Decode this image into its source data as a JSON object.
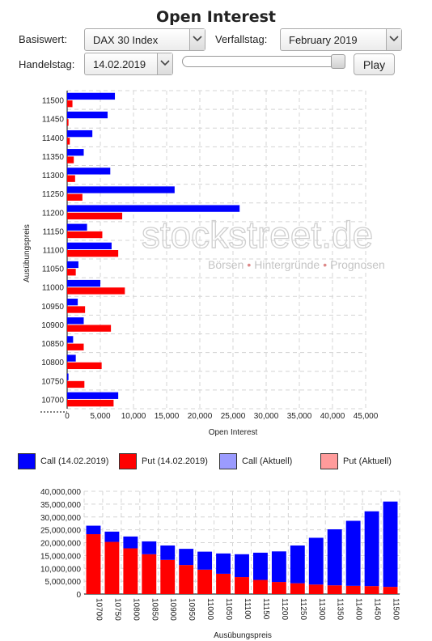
{
  "title": "Open Interest",
  "controls": {
    "basiswert_label": "Basiswert:",
    "basiswert_value": "DAX 30 Index",
    "verfallstag_label": "Verfallstag:",
    "verfallstag_value": "February 2019",
    "handelstag_label": "Handelstag:",
    "handelstag_value": "14.02.2019",
    "play_label": "Play",
    "slider_position": 1.0
  },
  "watermark": {
    "brand": "stockstreet.de",
    "tagline_parts": [
      "Börsen",
      "Hintergründe",
      "Prognosen"
    ],
    "separator": "•"
  },
  "legend": [
    {
      "label": "Call (14.02.2019)",
      "color": "#0000ff"
    },
    {
      "label": "Put (14.02.2019)",
      "color": "#ff0000"
    },
    {
      "label": "Call (Aktuell)",
      "color": "#9b9bff"
    },
    {
      "label": "Put (Aktuell)",
      "color": "#ff9b9b"
    }
  ],
  "chart_data": [
    {
      "type": "bar",
      "orientation": "horizontal",
      "xlabel": "Open Interest",
      "ylabel": "Ausübungspreis",
      "xlim": [
        0,
        45000
      ],
      "xticks": [
        0,
        5000,
        10000,
        15000,
        20000,
        25000,
        30000,
        35000,
        40000,
        45000
      ],
      "xtick_labels": [
        "0",
        "5,000",
        "10,000",
        "15,000",
        "20,000",
        "25,000",
        "30,000",
        "35,000",
        "40,000",
        "45,000"
      ],
      "grid": true,
      "categories": [
        "11500",
        "11450",
        "11400",
        "11350",
        "11300",
        "11250",
        "11200",
        "11150",
        "11100",
        "11050",
        "11000",
        "10950",
        "10900",
        "10850",
        "10800",
        "10750",
        "10700"
      ],
      "series": [
        {
          "name": "Call (14.02.2019)",
          "color": "#0000ff",
          "values": [
            7200,
            6100,
            3800,
            2500,
            6500,
            16200,
            26000,
            3000,
            6700,
            1700,
            5000,
            1600,
            2500,
            900,
            1300,
            200,
            7700
          ]
        },
        {
          "name": "Put (14.02.2019)",
          "color": "#ff0000",
          "values": [
            800,
            200,
            400,
            1000,
            1200,
            2300,
            8300,
            5300,
            7700,
            1300,
            8700,
            2700,
            6600,
            2500,
            5200,
            2600,
            7000
          ]
        }
      ]
    },
    {
      "type": "bar",
      "stacked": true,
      "xlabel": "Ausübungspreis",
      "ylabel": "",
      "ylim": [
        0,
        40000000
      ],
      "yticks": [
        0,
        5000000,
        10000000,
        15000000,
        20000000,
        25000000,
        30000000,
        35000000,
        40000000
      ],
      "ytick_labels": [
        "0",
        "5,000,000",
        "10,000,000",
        "15,000,000",
        "20,000,000",
        "25,000,000",
        "30,000,000",
        "35,000,000",
        "40,000,000"
      ],
      "grid": true,
      "categories": [
        "10700",
        "10750",
        "10800",
        "10850",
        "10900",
        "10950",
        "11000",
        "11050",
        "11100",
        "11150",
        "11200",
        "11250",
        "11300",
        "11350",
        "11400",
        "11450",
        "11500"
      ],
      "series": [
        {
          "name": "Put (14.02.2019)",
          "color": "#ff0000",
          "values": [
            23300000,
            20300000,
            17800000,
            15500000,
            13300000,
            11300000,
            9500000,
            7900000,
            6600000,
            5500000,
            4700000,
            4200000,
            3700000,
            3400000,
            3200000,
            3100000,
            2800000
          ]
        },
        {
          "name": "Call (14.02.2019)",
          "color": "#0000ff",
          "values": [
            3300000,
            4000000,
            4600000,
            5000000,
            5600000,
            6300000,
            7000000,
            7900000,
            8900000,
            10600000,
            11900000,
            14700000,
            18200000,
            21800000,
            25300000,
            29100000,
            33200000
          ]
        }
      ]
    }
  ]
}
